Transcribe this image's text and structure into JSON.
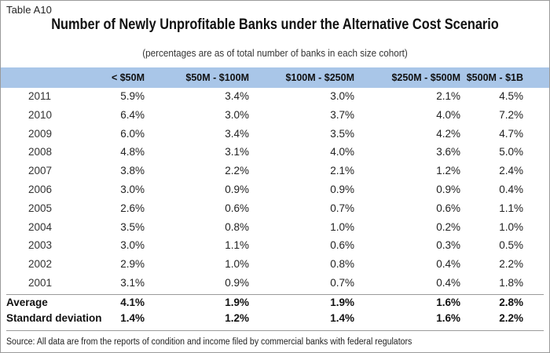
{
  "table_label": "Table A10",
  "title": "Number of Newly Unprofitable Banks under the Alternative Cost Scenario",
  "subtitle": "(percentages are as of total number of banks in each size cohort)",
  "source": "Source: All data are from the reports of condition and income filed by commercial banks with federal regulators",
  "chart_data": {
    "type": "table",
    "title": "Number of Newly Unprofitable Banks under the Alternative Cost Scenario",
    "columns": [
      "< $50M",
      "$50M - $100M",
      "$100M - $250M",
      "$250M - $500M",
      "$500M - $1B"
    ],
    "rows": [
      {
        "label": "2011",
        "values": [
          "5.9%",
          "3.4%",
          "3.0%",
          "2.1%",
          "4.5%"
        ]
      },
      {
        "label": "2010",
        "values": [
          "6.4%",
          "3.0%",
          "3.7%",
          "4.0%",
          "7.2%"
        ]
      },
      {
        "label": "2009",
        "values": [
          "6.0%",
          "3.4%",
          "3.5%",
          "4.2%",
          "4.7%"
        ]
      },
      {
        "label": "2008",
        "values": [
          "4.8%",
          "3.1%",
          "4.0%",
          "3.6%",
          "5.0%"
        ]
      },
      {
        "label": "2007",
        "values": [
          "3.8%",
          "2.2%",
          "2.1%",
          "1.2%",
          "2.4%"
        ]
      },
      {
        "label": "2006",
        "values": [
          "3.0%",
          "0.9%",
          "0.9%",
          "0.9%",
          "0.4%"
        ]
      },
      {
        "label": "2005",
        "values": [
          "2.6%",
          "0.6%",
          "0.7%",
          "0.6%",
          "1.1%"
        ]
      },
      {
        "label": "2004",
        "values": [
          "3.5%",
          "0.8%",
          "1.0%",
          "0.2%",
          "1.0%"
        ]
      },
      {
        "label": "2003",
        "values": [
          "3.0%",
          "1.1%",
          "0.6%",
          "0.3%",
          "0.5%"
        ]
      },
      {
        "label": "2002",
        "values": [
          "2.9%",
          "1.0%",
          "0.8%",
          "0.4%",
          "2.2%"
        ]
      },
      {
        "label": "2001",
        "values": [
          "3.1%",
          "0.9%",
          "0.7%",
          "0.4%",
          "1.8%"
        ]
      }
    ],
    "summary": [
      {
        "label": "Average",
        "values": [
          "4.1%",
          "1.9%",
          "1.9%",
          "1.6%",
          "2.8%"
        ]
      },
      {
        "label": "Standard deviation",
        "values": [
          "1.4%",
          "1.2%",
          "1.4%",
          "1.6%",
          "2.2%"
        ]
      }
    ]
  }
}
